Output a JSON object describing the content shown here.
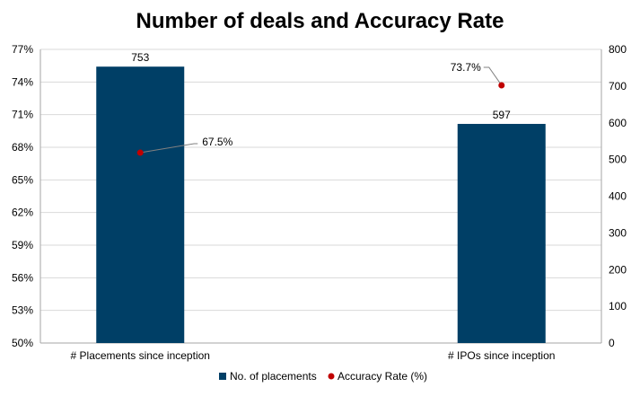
{
  "chart_data": {
    "type": "bar",
    "title": "Number of deals and Accuracy Rate",
    "categories": [
      "# Placements since inception",
      "# IPOs since inception"
    ],
    "series": [
      {
        "name": "No. of placements",
        "chart": "bar",
        "axis": "right",
        "values": [
          753,
          597
        ],
        "data_labels": [
          "753",
          "597"
        ],
        "color": "#003F66"
      },
      {
        "name": "Accuracy Rate (%)",
        "chart": "scatter",
        "axis": "left",
        "values": [
          67.5,
          73.7
        ],
        "data_labels": [
          "67.5%",
          "73.7%"
        ],
        "color": "#C00000"
      }
    ],
    "y_left": {
      "ylim": [
        50,
        77
      ],
      "ticks": [
        50,
        53,
        56,
        59,
        62,
        65,
        68,
        71,
        74,
        77
      ],
      "tick_labels": [
        "50%",
        "53%",
        "56%",
        "59%",
        "62%",
        "65%",
        "68%",
        "71%",
        "74%",
        "77%"
      ]
    },
    "y_right": {
      "ylim": [
        0,
        800
      ],
      "ticks": [
        0,
        100,
        200,
        300,
        400,
        500,
        600,
        700,
        800
      ],
      "tick_labels": [
        "0",
        "100",
        "200",
        "300",
        "400",
        "500",
        "600",
        "700",
        "800"
      ]
    },
    "grid": true,
    "legend": "bottom"
  }
}
